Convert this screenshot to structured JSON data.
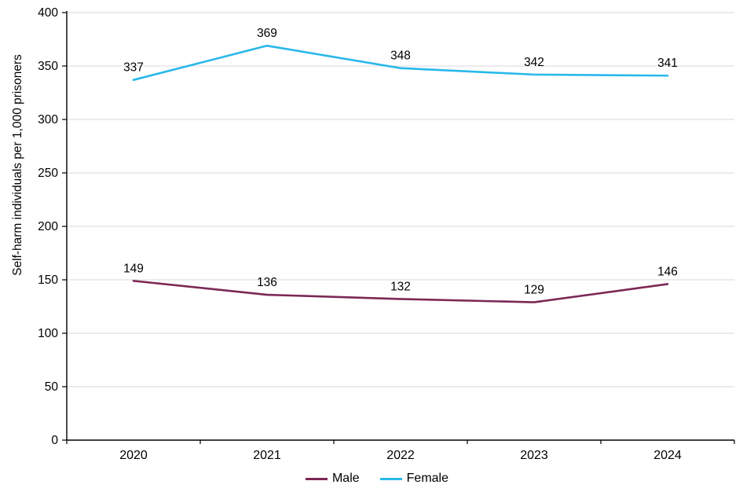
{
  "chart_data": {
    "type": "line",
    "categories": [
      "2020",
      "2021",
      "2022",
      "2023",
      "2024"
    ],
    "series": [
      {
        "name": "Male",
        "color": "#7C2855",
        "values": [
          149,
          136,
          132,
          129,
          146
        ]
      },
      {
        "name": "Female",
        "color": "#29B8EA",
        "values": [
          337,
          369,
          348,
          342,
          341
        ]
      }
    ],
    "title": "",
    "xlabel": "",
    "ylabel": "Self-harm individuals per 1,000 prisoners",
    "ylim": [
      0,
      400
    ],
    "ytick_step": 50,
    "yticks": [
      0,
      50,
      100,
      150,
      200,
      250,
      300,
      350,
      400
    ],
    "grid": true,
    "gridline_color": "#d9d9d9",
    "axis_color": "#000000",
    "data_labels": true,
    "legend_position": "bottom"
  }
}
